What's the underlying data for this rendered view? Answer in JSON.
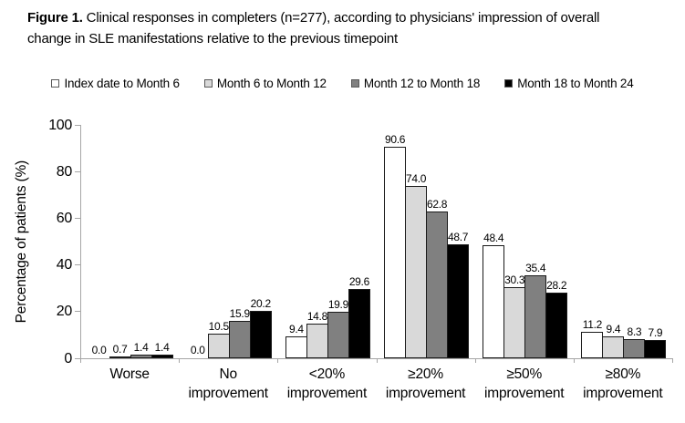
{
  "figure_title": {
    "prefix": "Figure 1.",
    "line1_rest": " Clinical responses in completers (n=277), according to physicians' impression of overall",
    "line2": "change in SLE manifestations relative to the previous timepoint"
  },
  "chart_data": {
    "type": "bar",
    "title": "Figure 1. Clinical responses in completers (n=277), according to physicians' impression of overall change in SLE manifestations relative to the previous timepoint",
    "xlabel": "",
    "ylabel": "Percentage of patients (%)",
    "ylim": [
      0,
      100
    ],
    "yticks": [
      0,
      20,
      40,
      60,
      80,
      100
    ],
    "grid": false,
    "legend_position": "top",
    "bar_value_labels": true,
    "value_label_decimals": 1,
    "categories": [
      "Worse",
      "No improvement",
      "<20% improvement",
      "≥20% improvement",
      "≥50% improvement",
      "≥80% improvement"
    ],
    "series": [
      {
        "name": "Index date to Month 6",
        "color": "#ffffff",
        "values": [
          0.0,
          0.0,
          9.4,
          90.6,
          48.4,
          11.2
        ]
      },
      {
        "name": "Month 6 to Month 12",
        "color": "#d9d9d9",
        "values": [
          0.7,
          10.5,
          14.8,
          74.0,
          30.3,
          9.4
        ]
      },
      {
        "name": "Month 12 to Month 18",
        "color": "#808080",
        "values": [
          1.4,
          15.9,
          19.9,
          62.8,
          35.4,
          8.3
        ]
      },
      {
        "name": "Month 18 to Month 24",
        "color": "#000000",
        "values": [
          1.4,
          20.2,
          29.6,
          48.7,
          28.2,
          7.9
        ]
      }
    ],
    "colors": {
      "bar_border": "#1a1a1a",
      "axis": "#a6a6a6",
      "text": "#000000",
      "background": "#ffffff"
    }
  }
}
